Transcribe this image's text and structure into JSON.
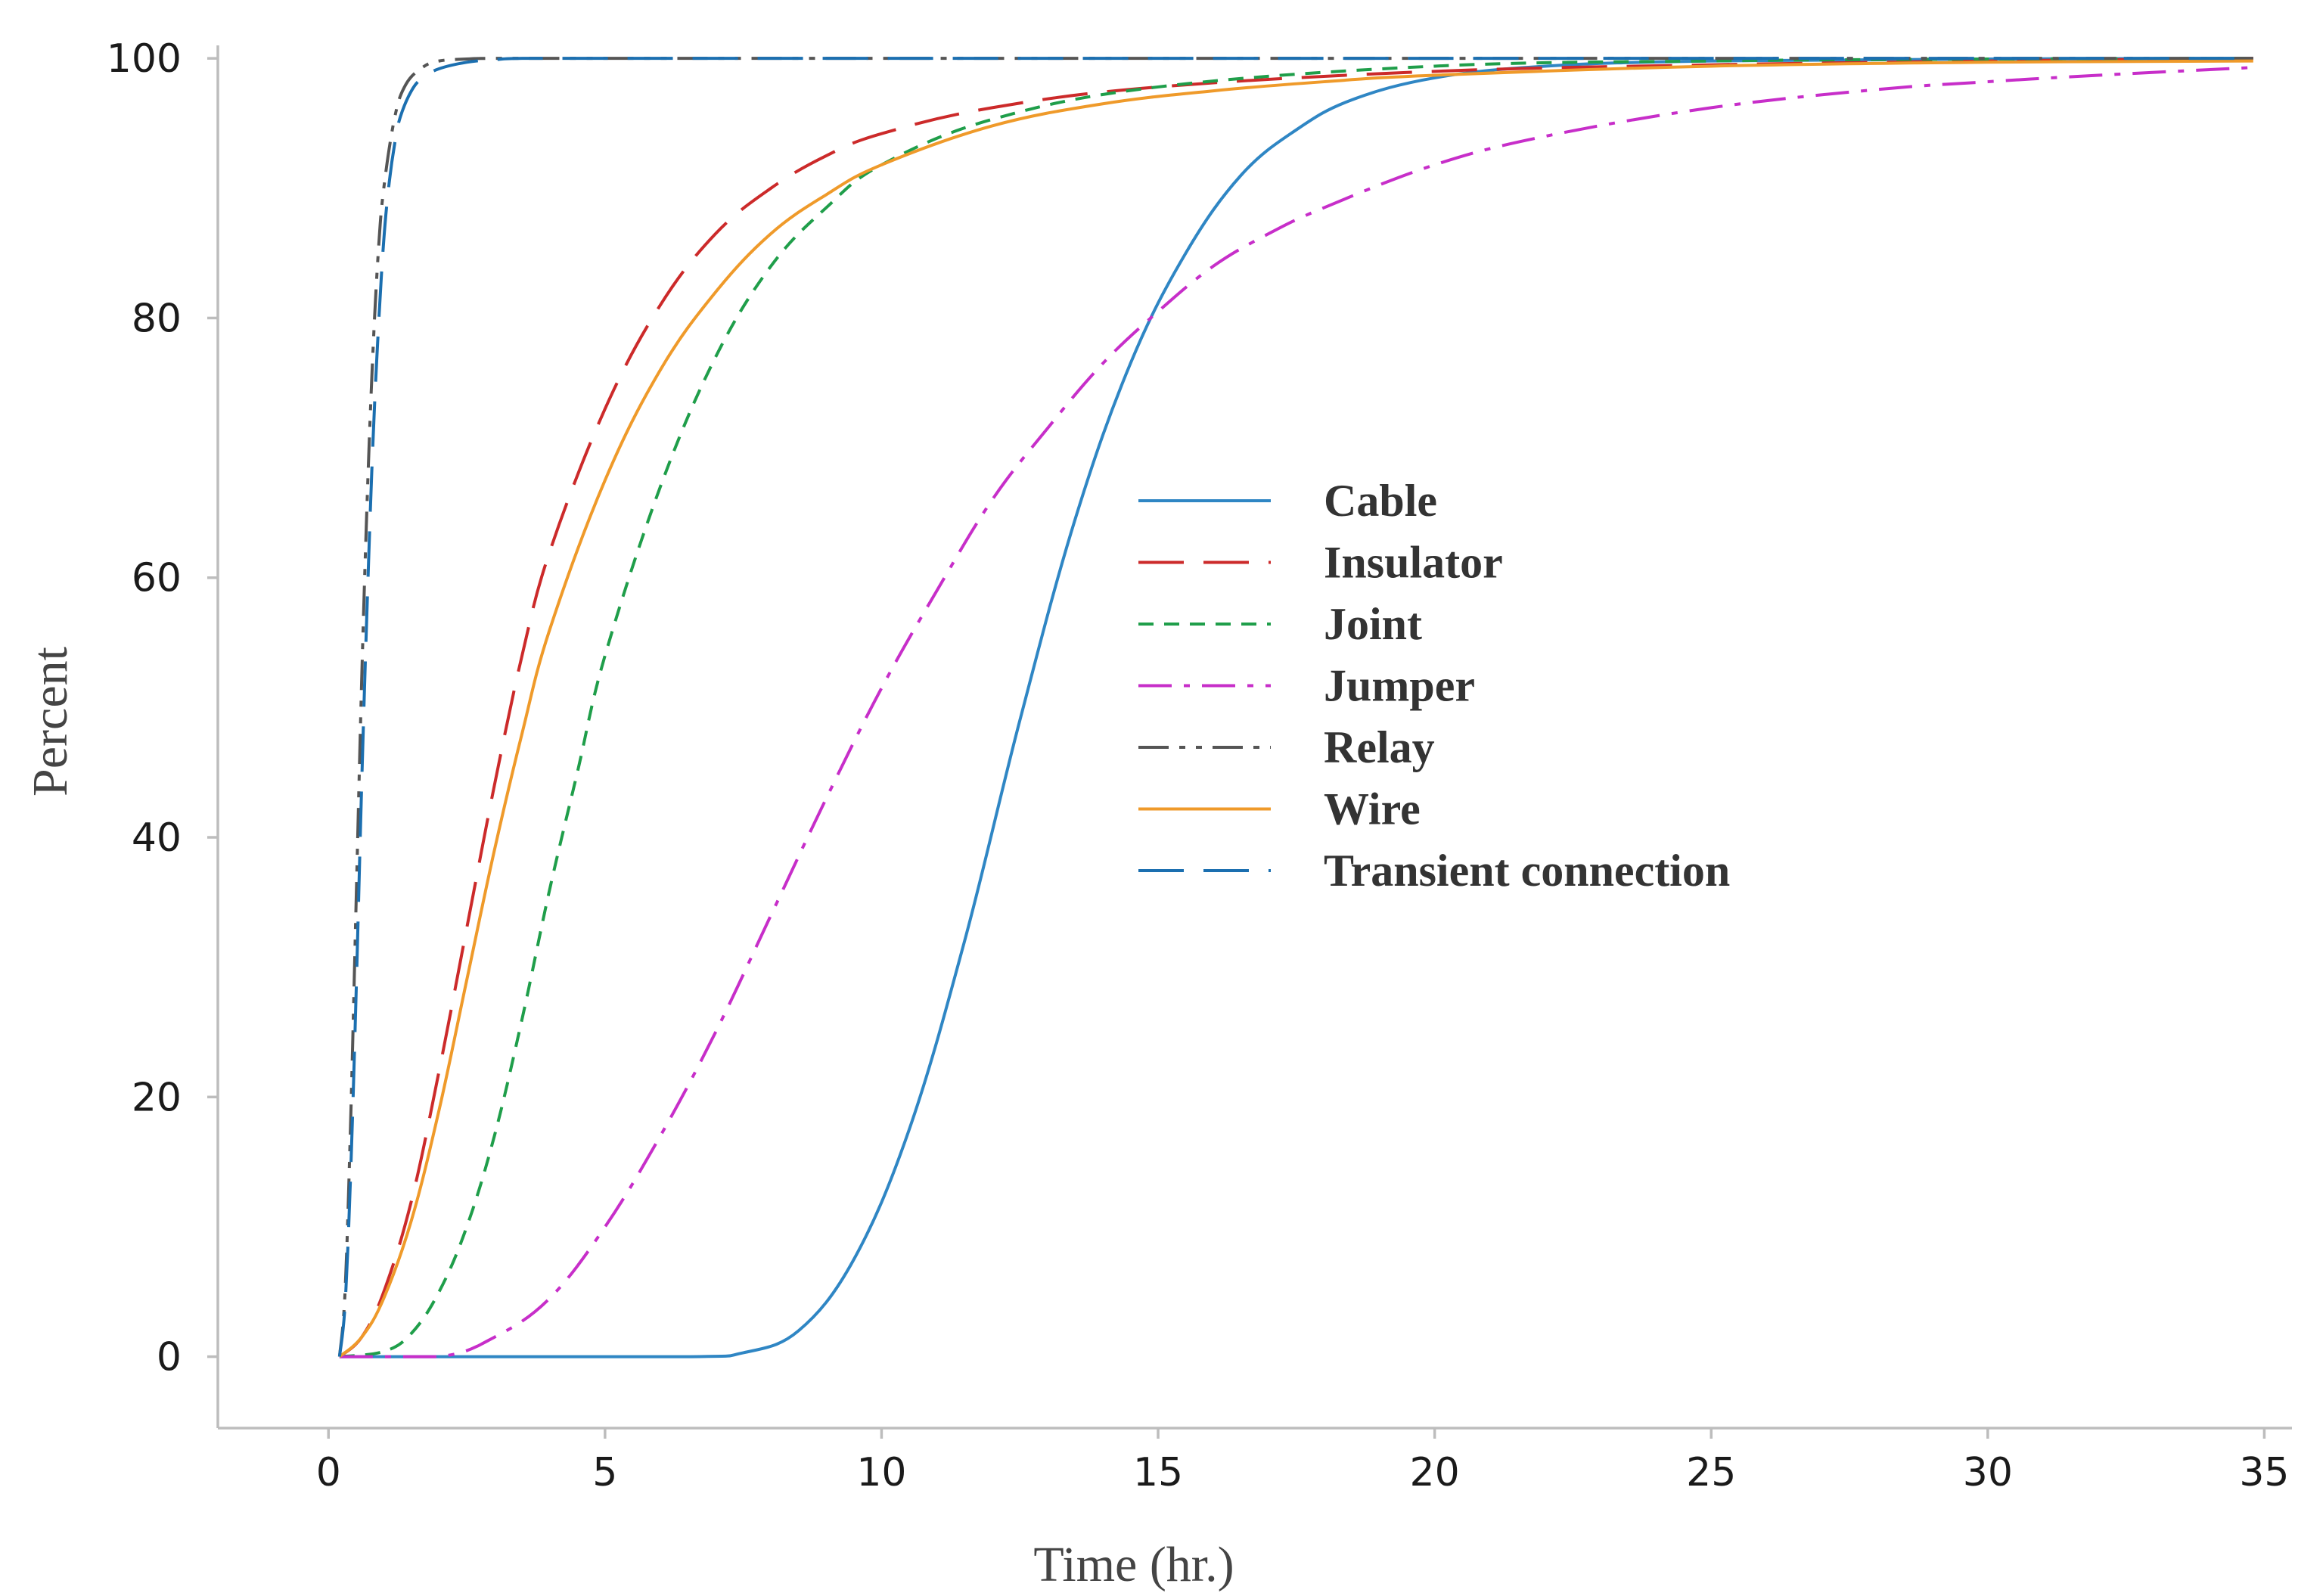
{
  "chart_data": {
    "type": "line",
    "title": "",
    "xlabel": "Time (hr.)",
    "ylabel": "Percent",
    "xlim": [
      -2,
      35.5
    ],
    "ylim": [
      -5.5,
      101
    ],
    "xticks": [
      0,
      5,
      10,
      15,
      20,
      25,
      30,
      35
    ],
    "yticks": [
      0,
      20,
      40,
      60,
      80,
      100
    ],
    "grid": false,
    "legend_position": "center-right",
    "series": [
      {
        "name": "Cable",
        "color": "#2f86c4",
        "dash": "solid",
        "x": [
          0.2,
          6.5,
          7.5,
          8.5,
          9.5,
          10.5,
          11.5,
          12.5,
          13.5,
          14.5,
          15.5,
          16.5,
          17.5,
          18.5,
          20,
          22,
          25,
          30,
          34.8
        ],
        "y": [
          0,
          0,
          0.3,
          2,
          7.5,
          17.5,
          32,
          49,
          64.5,
          76.5,
          85,
          91,
          94.5,
          96.8,
          98.5,
          99.4,
          99.8,
          99.95,
          100
        ]
      },
      {
        "name": "Insulator",
        "color": "#cc2a2a",
        "dash": "long-dash",
        "x": [
          0.2,
          0.6,
          1,
          1.5,
          2,
          2.5,
          3,
          3.5,
          4,
          5,
          6,
          7,
          8,
          9,
          10,
          12,
          15,
          20,
          25,
          30,
          34.8
        ],
        "y": [
          0,
          1.5,
          5,
          12,
          22,
          33,
          44,
          54,
          62,
          73,
          81,
          86.5,
          90,
          92.5,
          94.2,
          96.2,
          97.8,
          99,
          99.5,
          99.8,
          100
        ]
      },
      {
        "name": "Joint",
        "color": "#1f9e4a",
        "dash": "short-dash",
        "x": [
          0.2,
          1,
          1.5,
          2,
          2.5,
          3,
          3.5,
          4,
          4.5,
          5,
          6,
          7,
          8,
          9,
          10,
          12,
          15,
          20,
          25,
          30,
          34.8
        ],
        "y": [
          0,
          0.4,
          1.8,
          5,
          10,
          17,
          26,
          36,
          45,
          54,
          67,
          77,
          84,
          88.5,
          91.8,
          95.3,
          97.8,
          99.4,
          99.8,
          99.95,
          100
        ]
      },
      {
        "name": "Jumper",
        "color": "#c72ec9",
        "dash": "dash-dot",
        "x": [
          0.2,
          2,
          3,
          4,
          5,
          6,
          7,
          8,
          9,
          10,
          11,
          12,
          13,
          14,
          15,
          16,
          17,
          18,
          20,
          22,
          25,
          28,
          30,
          32,
          34.8
        ],
        "y": [
          0,
          0,
          1.5,
          4.5,
          10,
          17,
          25,
          34,
          43,
          51.5,
          59,
          66,
          71.5,
          76.5,
          80.5,
          84,
          86.5,
          88.5,
          91.8,
          94,
          96.2,
          97.6,
          98.2,
          98.7,
          99.3
        ]
      },
      {
        "name": "Relay",
        "color": "#555555",
        "dash": "dash-dot-dot",
        "x": [
          0.2,
          0.3,
          0.4,
          0.5,
          0.6,
          0.7,
          0.8,
          0.9,
          1,
          1.2,
          1.4,
          1.7,
          2,
          2.5,
          3,
          5,
          10,
          20,
          34.8
        ],
        "y": [
          0,
          5,
          18,
          35,
          52,
          66,
          77,
          85,
          90,
          95.5,
          98,
          99.3,
          99.8,
          99.95,
          100,
          100,
          100,
          100,
          100
        ]
      },
      {
        "name": "Wire",
        "color": "#ef9a2a",
        "dash": "solid",
        "x": [
          0.2,
          0.6,
          1,
          1.5,
          2,
          2.5,
          3,
          3.5,
          4,
          5,
          6,
          7,
          8,
          9,
          10,
          12,
          14,
          16,
          18,
          20,
          25,
          30,
          34.8
        ],
        "y": [
          0,
          1.5,
          4.5,
          10.5,
          19,
          29,
          39,
          48,
          56,
          67.5,
          76,
          82,
          86.5,
          89.5,
          91.8,
          94.8,
          96.5,
          97.5,
          98.2,
          98.7,
          99.4,
          99.7,
          99.8
        ]
      },
      {
        "name": "Transient connection",
        "color": "#1b6fb0",
        "dash": "long-dash",
        "x": [
          0.2,
          0.3,
          0.4,
          0.5,
          0.6,
          0.7,
          0.8,
          0.9,
          1,
          1.1,
          1.2,
          1.3,
          1.5,
          1.7,
          2,
          2.5,
          3,
          3.5,
          5,
          10,
          20,
          34.8
        ],
        "y": [
          0,
          4,
          14,
          28,
          44,
          58,
          70,
          79,
          86,
          90.5,
          93.5,
          95.5,
          97.5,
          98.5,
          99.2,
          99.7,
          99.9,
          100,
          100,
          100,
          100,
          100
        ]
      }
    ]
  }
}
